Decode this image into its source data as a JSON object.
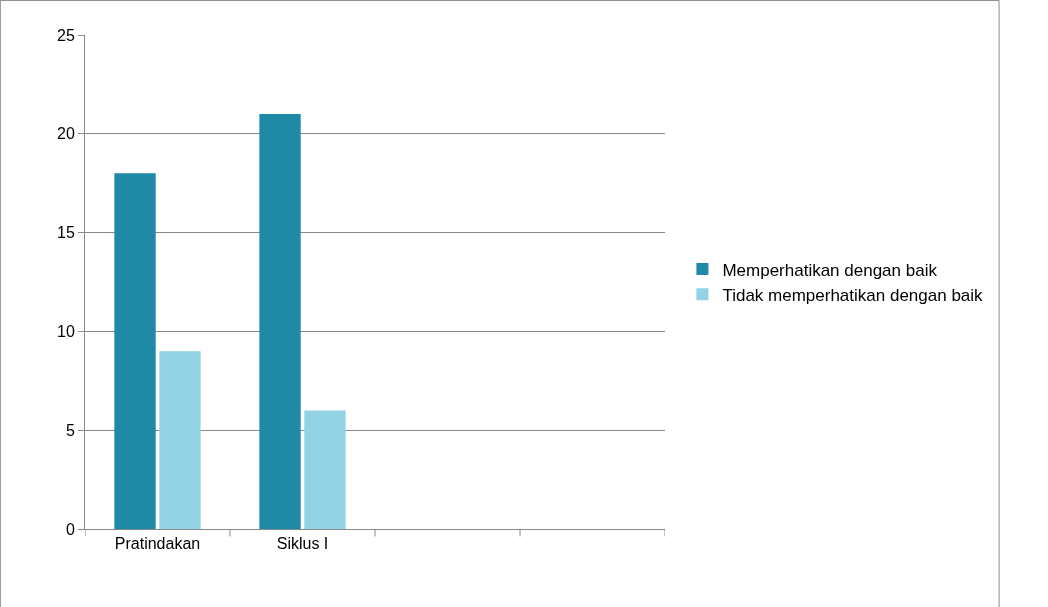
{
  "chart_data": {
    "type": "bar",
    "categories": [
      "Pratindakan",
      "Siklus I",
      null,
      null
    ],
    "series": [
      {
        "name": "Memperhatikan dengan baik",
        "color": "#1f8aa6",
        "values": [
          18,
          21,
          null,
          null
        ]
      },
      {
        "name": "Tidak memperhatikan dengan baik",
        "color": "#93d3e6",
        "values": [
          9,
          6,
          null,
          null
        ]
      }
    ],
    "ylim": [
      0,
      25
    ],
    "yticks": [
      0,
      5,
      10,
      15,
      20,
      25
    ],
    "grid": "y",
    "legend": "right"
  }
}
